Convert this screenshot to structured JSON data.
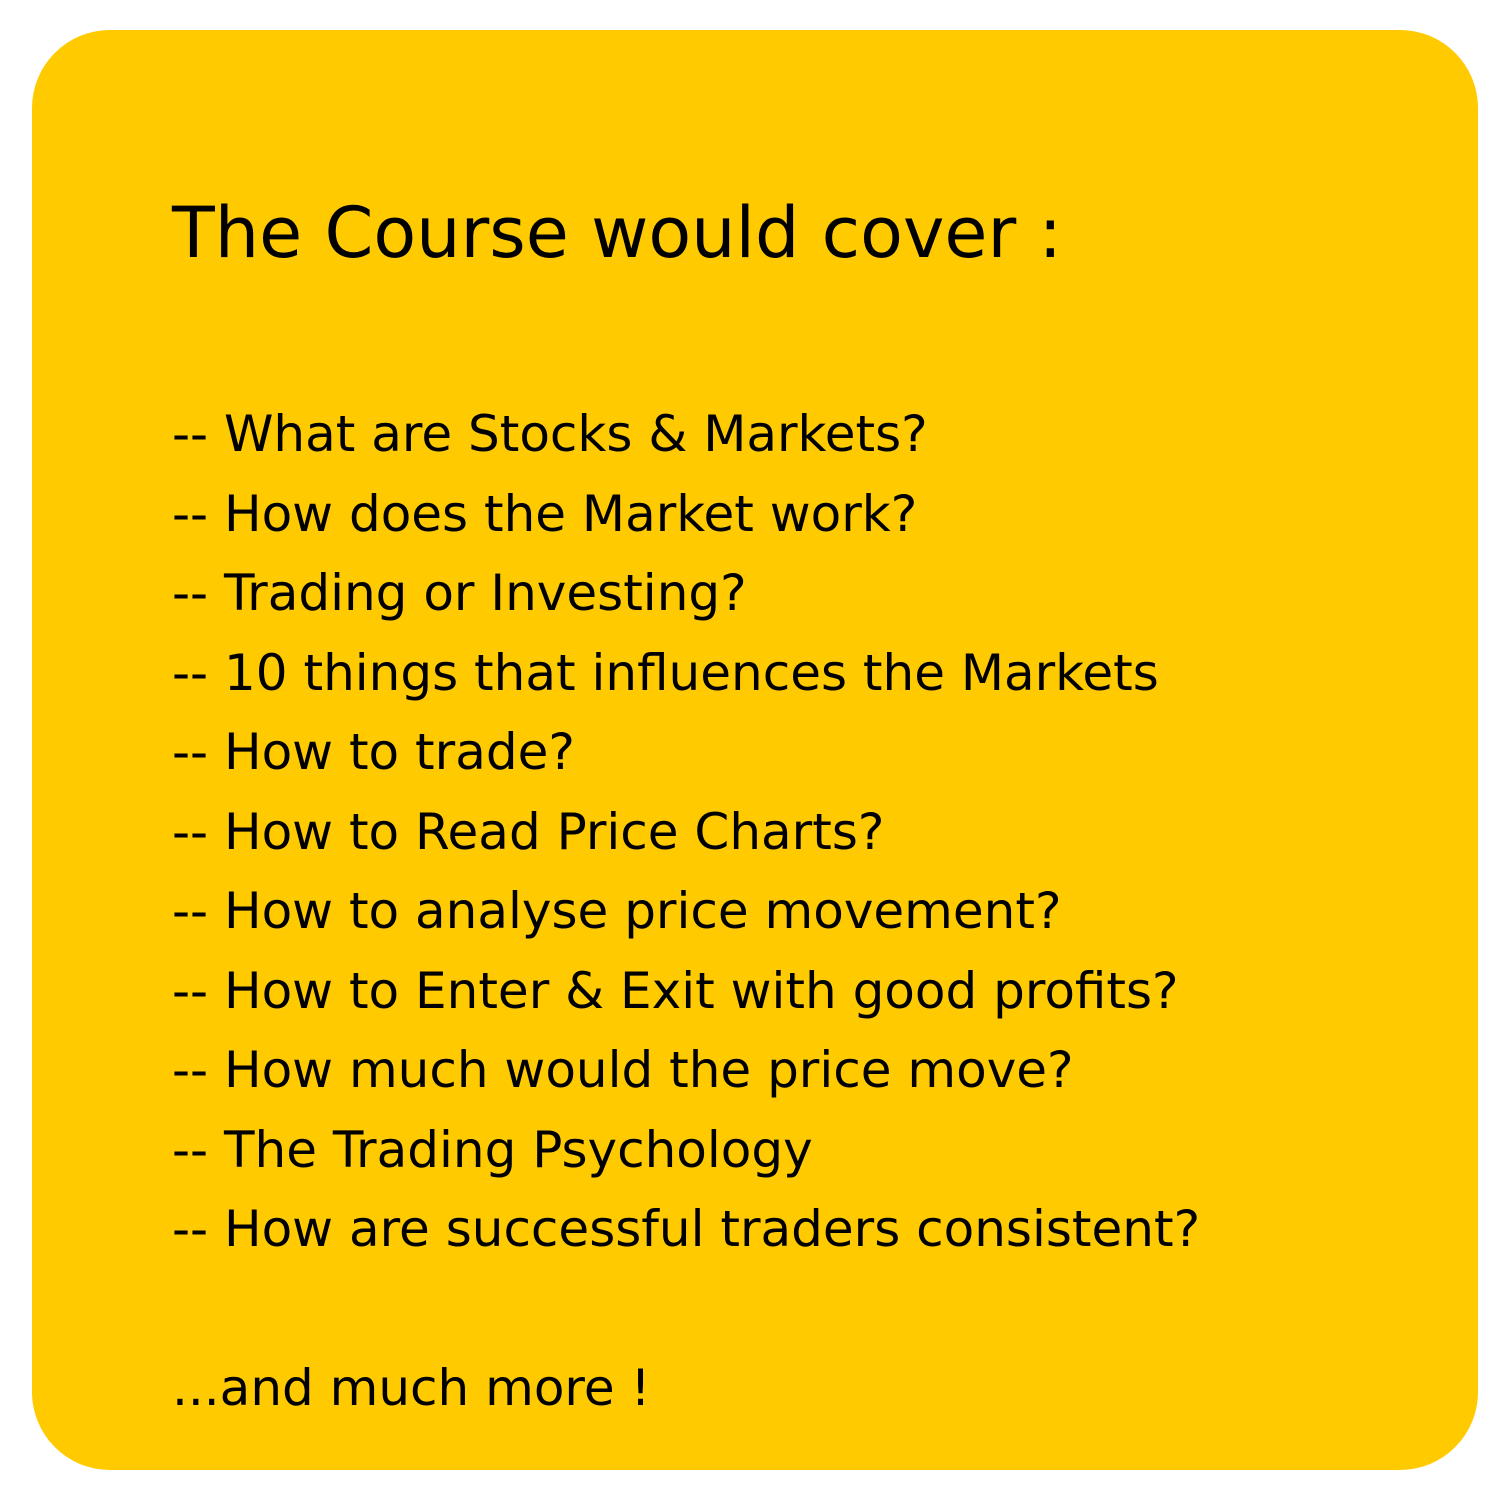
{
  "card": {
    "background": "#FFCA00",
    "text_color": "#000000"
  },
  "title": "The Course would cover :",
  "topics": [
    "-- What are Stocks & Markets?",
    "-- How does the Market work?",
    "-- Trading or Investing?",
    "-- 10 things that influences the Markets",
    "-- How to trade?",
    "-- How to Read Price Charts?",
    "-- How to analyse price movement?",
    "-- How to Enter & Exit with good profits?",
    "-- How much would the price move?",
    "-- The Trading Psychology",
    "-- How are successful traders consistent?"
  ],
  "footer": "...and much more !"
}
